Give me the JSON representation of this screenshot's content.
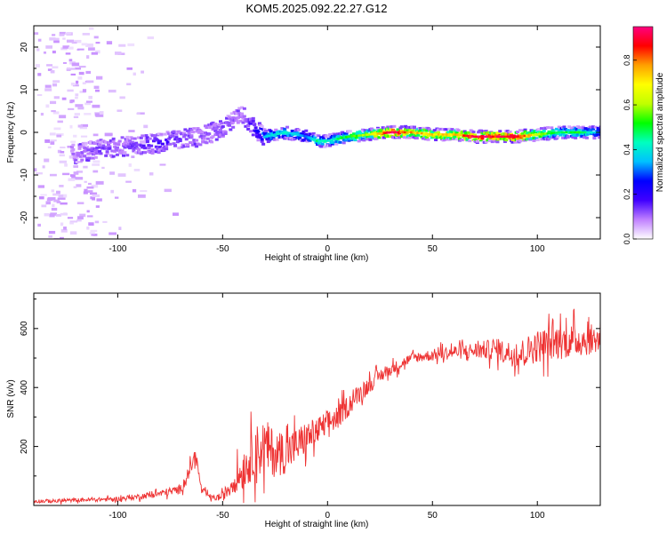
{
  "figure": {
    "title": "KOM5.2025.092.22.27.G12"
  },
  "chart_data": [
    {
      "type": "heatmap",
      "title": "KOM5.2025.092.22.27.G12",
      "xlabel": "Height of straight line (km)",
      "ylabel": "Frequency (Hz)",
      "xlim": [
        -140,
        130
      ],
      "ylim": [
        -25,
        25
      ],
      "xticks": [
        -100,
        -50,
        0,
        50,
        100
      ],
      "yticks": [
        -20,
        -10,
        0,
        10,
        20
      ],
      "colorbar": {
        "label": "Normalized spectral amplitude",
        "range": [
          0,
          0.95
        ],
        "ticks": [
          0.0,
          0.2,
          0.4,
          0.6,
          0.8
        ],
        "colors": [
          "#ffffff",
          "#c080ff",
          "#4000ff",
          "#0000ff",
          "#00c0ff",
          "#00ffc0",
          "#00ff00",
          "#c0ff00",
          "#ffff00",
          "#ffa000",
          "#ff0000",
          "#ff0080"
        ]
      },
      "ridge": {
        "x": [
          -120,
          -110,
          -100,
          -90,
          -80,
          -70,
          -60,
          -55,
          -50,
          -45,
          -40,
          -35,
          -30,
          -20,
          -10,
          -5,
          0,
          10,
          20,
          30,
          40,
          50,
          60,
          70,
          80,
          90,
          100,
          110,
          120,
          130
        ],
        "frequency": [
          -5,
          -4,
          -3.5,
          -3,
          -2.5,
          -1.5,
          -1,
          0,
          1,
          3,
          4,
          1,
          -1,
          0,
          -1,
          -2,
          -2,
          -1,
          -0.5,
          0,
          0,
          -0.5,
          -0.5,
          -1,
          -1,
          -1,
          -0.5,
          0,
          0,
          0
        ],
        "amplitude": [
          0.1,
          0.15,
          0.12,
          0.15,
          0.18,
          0.15,
          0.12,
          0.12,
          0.14,
          0.12,
          0.1,
          0.2,
          0.35,
          0.4,
          0.3,
          0.45,
          0.4,
          0.5,
          0.6,
          0.9,
          0.75,
          0.7,
          0.7,
          0.9,
          0.85,
          0.9,
          0.6,
          0.45,
          0.5,
          0.3
        ]
      }
    },
    {
      "type": "line",
      "xlabel": "Height of straight line (km)",
      "ylabel": "SNR (v/v)",
      "xlim": [
        -140,
        130
      ],
      "ylim": [
        0,
        720
      ],
      "xticks": [
        -100,
        -50,
        0,
        50,
        100
      ],
      "yticks": [
        200,
        400,
        600
      ],
      "series": [
        {
          "color": "#ee3333",
          "x": [
            -140,
            -130,
            -120,
            -110,
            -100,
            -90,
            -80,
            -70,
            -65,
            -63,
            -60,
            -55,
            -50,
            -45,
            -40,
            -35,
            -30,
            -25,
            -20,
            -15,
            -10,
            -5,
            0,
            5,
            10,
            15,
            20,
            25,
            30,
            35,
            40,
            50,
            60,
            70,
            80,
            90,
            100,
            110,
            120,
            130
          ],
          "y": [
            15,
            15,
            18,
            20,
            22,
            30,
            40,
            55,
            130,
            175,
            50,
            25,
            30,
            80,
            120,
            180,
            200,
            175,
            180,
            200,
            230,
            250,
            280,
            300,
            340,
            380,
            410,
            440,
            460,
            480,
            500,
            510,
            520,
            525,
            530,
            510,
            540,
            555,
            560,
            565
          ],
          "noise": [
            8,
            8,
            8,
            8,
            10,
            12,
            15,
            20,
            30,
            30,
            15,
            10,
            20,
            50,
            80,
            110,
            120,
            100,
            90,
            80,
            70,
            60,
            55,
            50,
            45,
            40,
            35,
            30,
            25,
            25,
            20,
            25,
            30,
            35,
            45,
            55,
            70,
            75,
            70,
            60
          ]
        }
      ]
    }
  ]
}
